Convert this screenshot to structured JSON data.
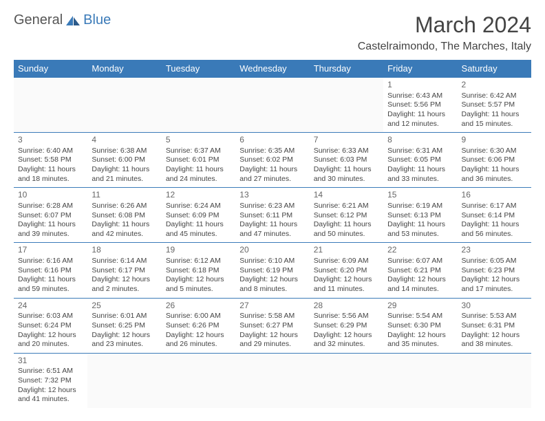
{
  "logo": {
    "text1": "General",
    "text2": "Blue"
  },
  "title": "March 2024",
  "location": "Castelraimondo, The Marches, Italy",
  "colors": {
    "header_bg": "#3a7ab8",
    "header_fg": "#ffffff",
    "border": "#3a7ab8",
    "text": "#444444"
  },
  "day_headers": [
    "Sunday",
    "Monday",
    "Tuesday",
    "Wednesday",
    "Thursday",
    "Friday",
    "Saturday"
  ],
  "weeks": [
    [
      null,
      null,
      null,
      null,
      null,
      {
        "n": "1",
        "sr": "6:43 AM",
        "ss": "5:56 PM",
        "dl": "11 hours and 12 minutes."
      },
      {
        "n": "2",
        "sr": "6:42 AM",
        "ss": "5:57 PM",
        "dl": "11 hours and 15 minutes."
      }
    ],
    [
      {
        "n": "3",
        "sr": "6:40 AM",
        "ss": "5:58 PM",
        "dl": "11 hours and 18 minutes."
      },
      {
        "n": "4",
        "sr": "6:38 AM",
        "ss": "6:00 PM",
        "dl": "11 hours and 21 minutes."
      },
      {
        "n": "5",
        "sr": "6:37 AM",
        "ss": "6:01 PM",
        "dl": "11 hours and 24 minutes."
      },
      {
        "n": "6",
        "sr": "6:35 AM",
        "ss": "6:02 PM",
        "dl": "11 hours and 27 minutes."
      },
      {
        "n": "7",
        "sr": "6:33 AM",
        "ss": "6:03 PM",
        "dl": "11 hours and 30 minutes."
      },
      {
        "n": "8",
        "sr": "6:31 AM",
        "ss": "6:05 PM",
        "dl": "11 hours and 33 minutes."
      },
      {
        "n": "9",
        "sr": "6:30 AM",
        "ss": "6:06 PM",
        "dl": "11 hours and 36 minutes."
      }
    ],
    [
      {
        "n": "10",
        "sr": "6:28 AM",
        "ss": "6:07 PM",
        "dl": "11 hours and 39 minutes."
      },
      {
        "n": "11",
        "sr": "6:26 AM",
        "ss": "6:08 PM",
        "dl": "11 hours and 42 minutes."
      },
      {
        "n": "12",
        "sr": "6:24 AM",
        "ss": "6:09 PM",
        "dl": "11 hours and 45 minutes."
      },
      {
        "n": "13",
        "sr": "6:23 AM",
        "ss": "6:11 PM",
        "dl": "11 hours and 47 minutes."
      },
      {
        "n": "14",
        "sr": "6:21 AM",
        "ss": "6:12 PM",
        "dl": "11 hours and 50 minutes."
      },
      {
        "n": "15",
        "sr": "6:19 AM",
        "ss": "6:13 PM",
        "dl": "11 hours and 53 minutes."
      },
      {
        "n": "16",
        "sr": "6:17 AM",
        "ss": "6:14 PM",
        "dl": "11 hours and 56 minutes."
      }
    ],
    [
      {
        "n": "17",
        "sr": "6:16 AM",
        "ss": "6:16 PM",
        "dl": "11 hours and 59 minutes."
      },
      {
        "n": "18",
        "sr": "6:14 AM",
        "ss": "6:17 PM",
        "dl": "12 hours and 2 minutes."
      },
      {
        "n": "19",
        "sr": "6:12 AM",
        "ss": "6:18 PM",
        "dl": "12 hours and 5 minutes."
      },
      {
        "n": "20",
        "sr": "6:10 AM",
        "ss": "6:19 PM",
        "dl": "12 hours and 8 minutes."
      },
      {
        "n": "21",
        "sr": "6:09 AM",
        "ss": "6:20 PM",
        "dl": "12 hours and 11 minutes."
      },
      {
        "n": "22",
        "sr": "6:07 AM",
        "ss": "6:21 PM",
        "dl": "12 hours and 14 minutes."
      },
      {
        "n": "23",
        "sr": "6:05 AM",
        "ss": "6:23 PM",
        "dl": "12 hours and 17 minutes."
      }
    ],
    [
      {
        "n": "24",
        "sr": "6:03 AM",
        "ss": "6:24 PM",
        "dl": "12 hours and 20 minutes."
      },
      {
        "n": "25",
        "sr": "6:01 AM",
        "ss": "6:25 PM",
        "dl": "12 hours and 23 minutes."
      },
      {
        "n": "26",
        "sr": "6:00 AM",
        "ss": "6:26 PM",
        "dl": "12 hours and 26 minutes."
      },
      {
        "n": "27",
        "sr": "5:58 AM",
        "ss": "6:27 PM",
        "dl": "12 hours and 29 minutes."
      },
      {
        "n": "28",
        "sr": "5:56 AM",
        "ss": "6:29 PM",
        "dl": "12 hours and 32 minutes."
      },
      {
        "n": "29",
        "sr": "5:54 AM",
        "ss": "6:30 PM",
        "dl": "12 hours and 35 minutes."
      },
      {
        "n": "30",
        "sr": "5:53 AM",
        "ss": "6:31 PM",
        "dl": "12 hours and 38 minutes."
      }
    ],
    [
      {
        "n": "31",
        "sr": "6:51 AM",
        "ss": "7:32 PM",
        "dl": "12 hours and 41 minutes."
      },
      null,
      null,
      null,
      null,
      null,
      null
    ]
  ],
  "labels": {
    "sunrise": "Sunrise:",
    "sunset": "Sunset:",
    "daylight": "Daylight:"
  }
}
